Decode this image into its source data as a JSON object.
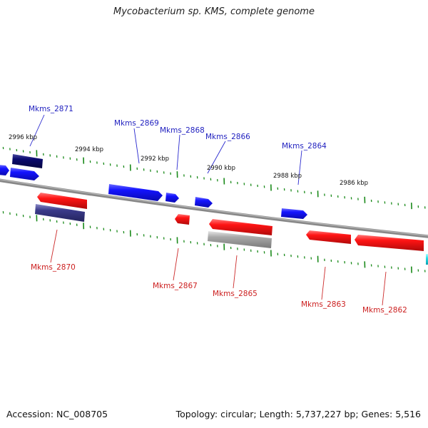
{
  "title": "Mycobacterium sp. KMS, complete genome",
  "footer": {
    "accession": "Accession: NC_008705",
    "summary": "Topology: circular; Length: 5,737,227 bp; Genes: 5,516"
  },
  "colors": {
    "forward": "#1414ff",
    "reverse": "#ff1414",
    "forward_dark": "#0a0a6e",
    "reverse_dark": "#3a3a8a",
    "gray": "#a8a8a8",
    "tick": "#1a8a1a",
    "backbone": "#888888",
    "label_top": "#1f1fbf",
    "label_bot": "#cc1f1f"
  },
  "positions": [
    "2996 kbp",
    "2994 kbp",
    "2992 kbp",
    "2990 kbp",
    "2988 kbp",
    "2986 kbp"
  ],
  "gene_labels_top": [
    "Mkms_2871",
    "Mkms_2869",
    "Mkms_2868",
    "Mkms_2866",
    "Mkms_2864"
  ],
  "gene_labels_bottom": [
    "Mkms_2870",
    "Mkms_2867",
    "Mkms_2865",
    "Mkms_2863",
    "Mkms_2862"
  ]
}
